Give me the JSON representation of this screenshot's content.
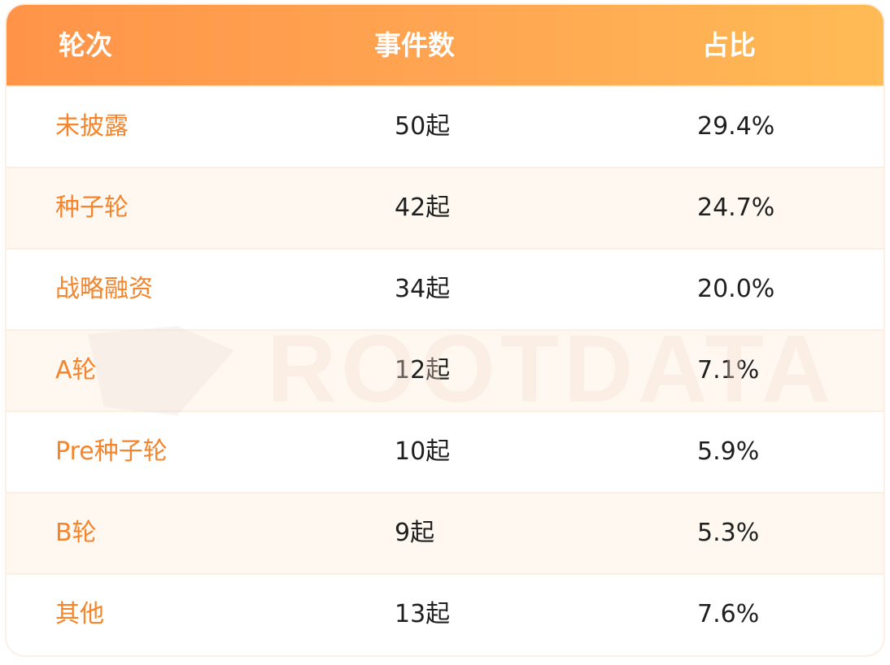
{
  "colors": {
    "header_start": "#ff9448",
    "header_end": "#ffbb55",
    "label": "#f5842a",
    "text": "#1f1f1f",
    "alt_row": "#fff8f1"
  },
  "watermark": "ROOTDATA",
  "chart_data": {
    "type": "table",
    "columns": [
      "轮次",
      "事件数",
      "占比"
    ],
    "rows": [
      [
        "未披露",
        "50起",
        "29.4%"
      ],
      [
        "种子轮",
        "42起",
        "24.7%"
      ],
      [
        "战略融资",
        "34起",
        "20.0%"
      ],
      [
        "A轮",
        "12起",
        "7.1%"
      ],
      [
        "Pre种子轮",
        "10起",
        "5.9%"
      ],
      [
        "B轮",
        "9起",
        "5.3%"
      ],
      [
        "其他",
        "13起",
        "7.6%"
      ]
    ]
  }
}
